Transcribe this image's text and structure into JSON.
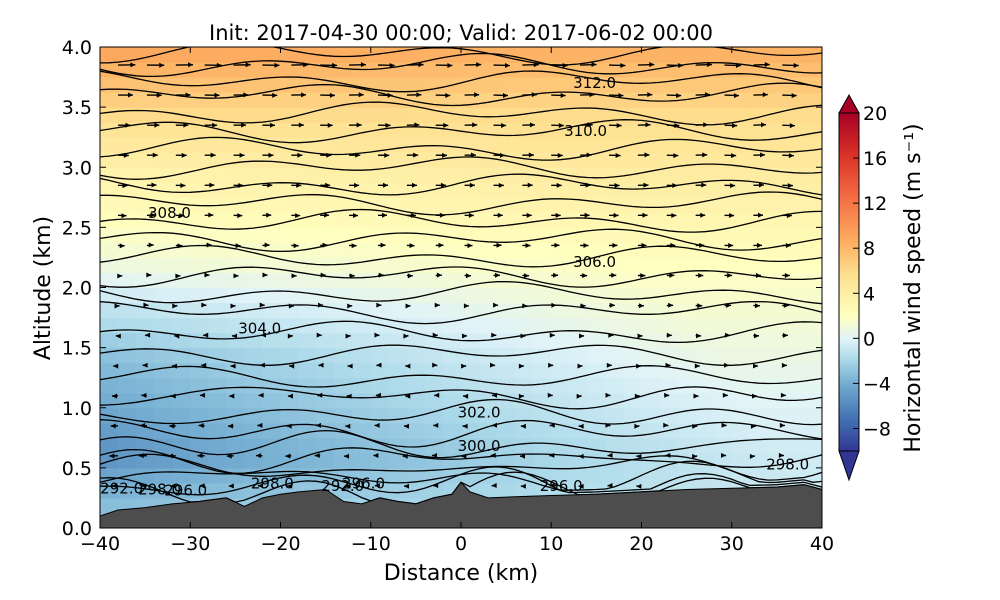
{
  "chart_data": {
    "type": "contour",
    "title": "Init: 2017-04-30 00:00; Valid: 2017-06-02 00:00",
    "xlabel": "Distance (km)",
    "ylabel": "Altitude (km)",
    "xlim": [
      -40,
      40
    ],
    "ylim": [
      0.0,
      4.0
    ],
    "x_ticks": [
      -40,
      -30,
      -20,
      -10,
      0,
      10,
      20,
      30,
      40
    ],
    "x_tick_labels": [
      "−40",
      "−30",
      "−20",
      "−10",
      "0",
      "10",
      "20",
      "30",
      "40"
    ],
    "y_ticks": [
      0.0,
      0.5,
      1.0,
      1.5,
      2.0,
      2.5,
      3.0,
      3.5,
      4.0
    ],
    "y_tick_labels": [
      "0.0",
      "0.5",
      "1.0",
      "1.5",
      "2.0",
      "2.5",
      "3.0",
      "3.5",
      "4.0"
    ],
    "colorbar": {
      "label": "Horizontal wind speed (m s⁻¹)",
      "range": [
        -10,
        20
      ],
      "ticks": [
        20,
        16,
        12,
        8,
        4,
        0,
        -4,
        -8
      ],
      "tick_labels": [
        "20",
        "16",
        "12",
        "8",
        "4",
        "0",
        "−4",
        "−8"
      ],
      "colors": [
        "#313695",
        "#4575b4",
        "#74add1",
        "#abd9e9",
        "#e0f3f8",
        "#ffffbf",
        "#fee090",
        "#fdae61",
        "#f46d43",
        "#d73027",
        "#a50026"
      ]
    },
    "wind_speed_profile": {
      "altitude_km": [
        0.2,
        0.6,
        1.0,
        1.4,
        1.8,
        2.2,
        2.6,
        3.0,
        3.4,
        3.8,
        4.0
      ],
      "left_side_ms": [
        -3,
        -6,
        -5,
        -4,
        -1,
        3,
        5,
        6,
        8,
        11,
        12
      ],
      "right_side_ms": [
        1,
        1,
        2,
        3,
        4,
        5,
        6,
        7,
        8,
        10,
        11
      ]
    },
    "terrain": {
      "distance_km": [
        -40,
        -38,
        -35,
        -32,
        -29,
        -26,
        -24,
        -22,
        -20,
        -18,
        -15,
        -13,
        -11,
        -9,
        -7,
        -5,
        -3,
        -1,
        0,
        1,
        3,
        6,
        10,
        15,
        20,
        25,
        30,
        35,
        38,
        40
      ],
      "height_km": [
        0.1,
        0.15,
        0.17,
        0.2,
        0.22,
        0.25,
        0.18,
        0.25,
        0.28,
        0.3,
        0.32,
        0.22,
        0.2,
        0.25,
        0.22,
        0.2,
        0.25,
        0.28,
        0.38,
        0.3,
        0.25,
        0.26,
        0.27,
        0.28,
        0.3,
        0.32,
        0.33,
        0.34,
        0.36,
        0.32
      ]
    },
    "isentropes_K": {
      "labels": [
        {
          "text": "312.0",
          "x_km": 14.8,
          "z_km": 3.7
        },
        {
          "text": "310.0",
          "x_km": 13.8,
          "z_km": 3.3
        },
        {
          "text": "308.0",
          "x_km": -32.3,
          "z_km": 2.62
        },
        {
          "text": "306.0",
          "x_km": 14.8,
          "z_km": 2.21
        },
        {
          "text": "304.0",
          "x_km": -22.3,
          "z_km": 1.66
        },
        {
          "text": "302.0",
          "x_km": 2.0,
          "z_km": 0.96
        },
        {
          "text": "300.0",
          "x_km": 2.0,
          "z_km": 0.68
        },
        {
          "text": "298.0",
          "x_km": 36.2,
          "z_km": 0.53
        },
        {
          "text": "298.0",
          "x_km": -20.9,
          "z_km": 0.37
        },
        {
          "text": "296.0",
          "x_km": 11.1,
          "z_km": 0.35
        },
        {
          "text": "292.0",
          "x_km": -37.6,
          "z_km": 0.33
        },
        {
          "text": "298.0",
          "x_km": -33.4,
          "z_km": 0.32
        },
        {
          "text": "296.0",
          "x_km": -30.5,
          "z_km": 0.31
        },
        {
          "text": "296.0",
          "x_km": -10.8,
          "z_km": 0.37
        },
        {
          "text": "292.0",
          "x_km": -13.1,
          "z_km": 0.35
        }
      ]
    }
  }
}
